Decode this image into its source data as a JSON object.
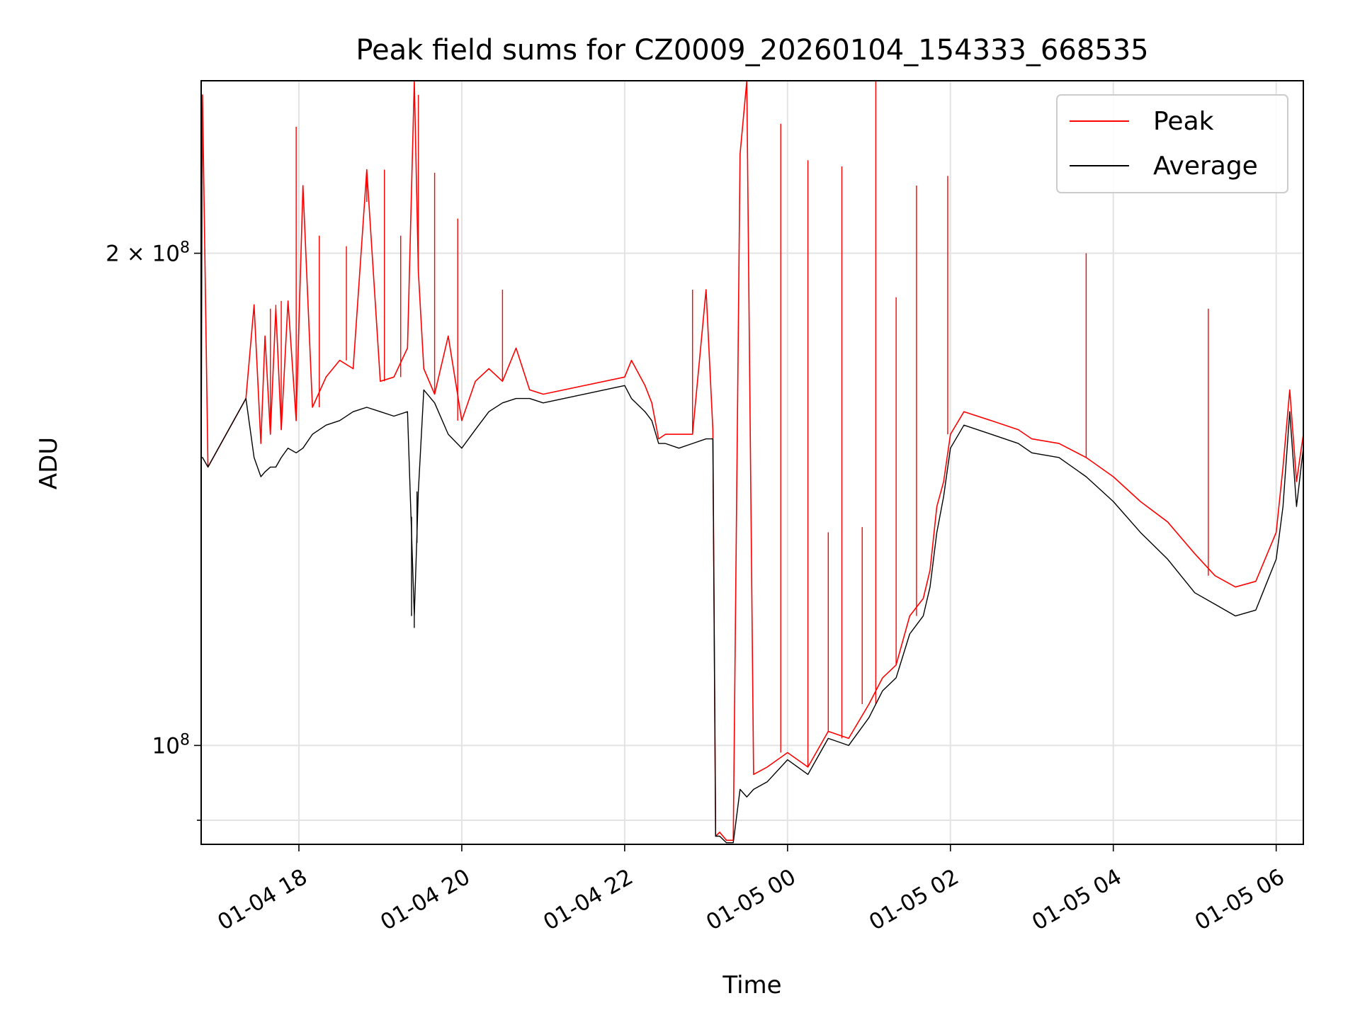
{
  "chart_data": {
    "type": "line",
    "title": "Peak field sums for CZ0009_20260104_154333_668535",
    "xlabel": "Time",
    "ylabel": "ADU",
    "yscale": "log",
    "xlim": [
      "2026-01-04 16:48",
      "2026-01-05 06:20"
    ],
    "ylim": [
      87000000,
      255000000
    ],
    "grid": true,
    "legend_position": "upper right",
    "x_ticks": [
      {
        "value": "2026-01-04 18:00",
        "label": "01-04 18"
      },
      {
        "value": "2026-01-04 20:00",
        "label": "01-04 20"
      },
      {
        "value": "2026-01-04 22:00",
        "label": "01-04 22"
      },
      {
        "value": "2026-01-05 00:00",
        "label": "01-05 00"
      },
      {
        "value": "2026-01-05 02:00",
        "label": "01-05 02"
      },
      {
        "value": "2026-01-05 04:00",
        "label": "01-05 04"
      },
      {
        "value": "2026-01-05 06:00",
        "label": "01-05 06"
      }
    ],
    "y_ticks": [
      {
        "value": 200000000,
        "label": "2×10⁸",
        "mantissa": "2 × 10",
        "exponent": "8"
      },
      {
        "value": 100000000,
        "label": "10⁸",
        "mantissa": "10",
        "exponent": "8"
      }
    ],
    "series": [
      {
        "name": "Peak",
        "color": "#ff0000",
        "x": [
          "2026-01-04 16:48",
          "2026-01-04 16:49",
          "2026-01-04 16:53",
          "2026-01-04 17:21",
          "2026-01-04 17:27",
          "2026-01-04 17:32",
          "2026-01-04 17:35",
          "2026-01-04 17:39",
          "2026-01-04 17:43",
          "2026-01-04 17:47",
          "2026-01-04 17:52",
          "2026-01-04 17:58",
          "2026-01-04 18:03",
          "2026-01-04 18:10",
          "2026-01-04 18:20",
          "2026-01-04 18:30",
          "2026-01-04 18:40",
          "2026-01-04 18:50",
          "2026-01-04 19:00",
          "2026-01-04 19:10",
          "2026-01-04 19:20",
          "2026-01-04 19:25",
          "2026-01-04 19:28",
          "2026-01-04 19:32",
          "2026-01-04 19:40",
          "2026-01-04 19:50",
          "2026-01-04 20:00",
          "2026-01-04 20:10",
          "2026-01-04 20:20",
          "2026-01-04 20:30",
          "2026-01-04 20:40",
          "2026-01-04 20:50",
          "2026-01-04 21:00",
          "2026-01-04 22:00",
          "2026-01-04 22:05",
          "2026-01-04 22:15",
          "2026-01-04 22:20",
          "2026-01-04 22:25",
          "2026-01-04 22:30",
          "2026-01-04 22:40",
          "2026-01-04 22:50",
          "2026-01-04 23:00",
          "2026-01-04 23:05",
          "2026-01-04 23:07",
          "2026-01-04 23:10",
          "2026-01-04 23:15",
          "2026-01-04 23:20",
          "2026-01-04 23:25",
          "2026-01-04 23:30",
          "2026-01-04 23:35",
          "2026-01-04 23:45",
          "2026-01-05 00:00",
          "2026-01-05 00:15",
          "2026-01-05 00:30",
          "2026-01-05 00:45",
          "2026-01-05 01:00",
          "2026-01-05 01:10",
          "2026-01-05 01:20",
          "2026-01-05 01:30",
          "2026-01-05 01:40",
          "2026-01-05 01:45",
          "2026-01-05 01:50",
          "2026-01-05 01:55",
          "2026-01-05 02:00",
          "2026-01-05 02:10",
          "2026-01-05 02:30",
          "2026-01-05 02:50",
          "2026-01-05 03:00",
          "2026-01-05 03:20",
          "2026-01-05 03:40",
          "2026-01-05 04:00",
          "2026-01-05 04:20",
          "2026-01-05 04:40",
          "2026-01-05 05:00",
          "2026-01-05 05:15",
          "2026-01-05 05:30",
          "2026-01-05 05:45",
          "2026-01-05 06:00",
          "2026-01-05 06:05",
          "2026-01-05 06:10",
          "2026-01-05 06:15",
          "2026-01-05 06:20"
        ],
        "y": [
          150000000,
          250000000,
          148000000,
          163000000,
          186000000,
          153000000,
          178000000,
          155000000,
          185000000,
          156000000,
          187000000,
          158000000,
          220000000,
          161000000,
          168000000,
          172000000,
          170000000,
          225000000,
          167000000,
          168000000,
          175000000,
          255000000,
          195000000,
          170000000,
          164000000,
          178000000,
          158000000,
          167000000,
          170000000,
          167000000,
          175000000,
          165000000,
          164000000,
          168000000,
          172000000,
          166000000,
          162000000,
          154000000,
          155000000,
          155000000,
          155000000,
          190000000,
          156000000,
          88000000,
          88500000,
          87500000,
          87500000,
          230000000,
          255000000,
          96000000,
          97000000,
          99000000,
          97000000,
          102000000,
          101000000,
          106000000,
          110000000,
          112000000,
          120000000,
          123000000,
          128000000,
          140000000,
          145000000,
          155000000,
          160000000,
          158000000,
          156000000,
          154000000,
          153000000,
          150000000,
          146000000,
          141000000,
          137000000,
          131000000,
          127000000,
          125000000,
          126000000,
          135000000,
          148000000,
          165000000,
          145000000,
          155000000
        ],
        "spikes": [
          {
            "x": "2026-01-04 17:35",
            "y": 178000000
          },
          {
            "x": "2026-01-04 17:39",
            "y": 185000000
          },
          {
            "x": "2026-01-04 17:43",
            "y": 186000000
          },
          {
            "x": "2026-01-04 17:47",
            "y": 187000000
          },
          {
            "x": "2026-01-04 17:58",
            "y": 239000000
          },
          {
            "x": "2026-01-04 18:15",
            "y": 205000000
          },
          {
            "x": "2026-01-04 18:35",
            "y": 202000000
          },
          {
            "x": "2026-01-04 18:50",
            "y": 215000000
          },
          {
            "x": "2026-01-04 19:03",
            "y": 225000000
          },
          {
            "x": "2026-01-04 19:15",
            "y": 205000000
          },
          {
            "x": "2026-01-04 19:25",
            "y": 255000000
          },
          {
            "x": "2026-01-04 19:28",
            "y": 250000000
          },
          {
            "x": "2026-01-04 19:40",
            "y": 224000000
          },
          {
            "x": "2026-01-04 19:57",
            "y": 210000000
          },
          {
            "x": "2026-01-04 20:30",
            "y": 190000000
          },
          {
            "x": "2026-01-04 22:00",
            "y": 168000000
          },
          {
            "x": "2026-01-04 22:50",
            "y": 190000000
          },
          {
            "x": "2026-01-04 23:30",
            "y": 255000000
          },
          {
            "x": "2026-01-04 23:32",
            "y": 255000000
          },
          {
            "x": "2026-01-04 23:55",
            "y": 240000000
          },
          {
            "x": "2026-01-05 00:15",
            "y": 228000000
          },
          {
            "x": "2026-01-05 00:30",
            "y": 135000000
          },
          {
            "x": "2026-01-05 00:40",
            "y": 226000000
          },
          {
            "x": "2026-01-05 00:55",
            "y": 136000000
          },
          {
            "x": "2026-01-05 01:05",
            "y": 255000000
          },
          {
            "x": "2026-01-05 01:20",
            "y": 188000000
          },
          {
            "x": "2026-01-05 01:35",
            "y": 220000000
          },
          {
            "x": "2026-01-05 01:58",
            "y": 223000000
          },
          {
            "x": "2026-01-05 03:40",
            "y": 200000000
          },
          {
            "x": "2026-01-05 05:10",
            "y": 185000000
          }
        ]
      },
      {
        "name": "Average",
        "color": "#000000",
        "x": [
          "2026-01-04 16:48",
          "2026-01-04 16:49",
          "2026-01-04 16:53",
          "2026-01-04 17:21",
          "2026-01-04 17:27",
          "2026-01-04 17:32",
          "2026-01-04 17:35",
          "2026-01-04 17:39",
          "2026-01-04 17:43",
          "2026-01-04 17:47",
          "2026-01-04 17:52",
          "2026-01-04 17:58",
          "2026-01-04 18:03",
          "2026-01-04 18:10",
          "2026-01-04 18:20",
          "2026-01-04 18:30",
          "2026-01-04 18:40",
          "2026-01-04 18:50",
          "2026-01-04 19:00",
          "2026-01-04 19:10",
          "2026-01-04 19:20",
          "2026-01-04 19:25",
          "2026-01-04 19:28",
          "2026-01-04 19:32",
          "2026-01-04 19:40",
          "2026-01-04 19:50",
          "2026-01-04 20:00",
          "2026-01-04 20:10",
          "2026-01-04 20:20",
          "2026-01-04 20:30",
          "2026-01-04 20:40",
          "2026-01-04 20:50",
          "2026-01-04 21:00",
          "2026-01-04 22:00",
          "2026-01-04 22:05",
          "2026-01-04 22:15",
          "2026-01-04 22:20",
          "2026-01-04 22:25",
          "2026-01-04 22:30",
          "2026-01-04 22:40",
          "2026-01-04 22:50",
          "2026-01-04 23:00",
          "2026-01-04 23:05",
          "2026-01-04 23:07",
          "2026-01-04 23:10",
          "2026-01-04 23:15",
          "2026-01-04 23:20",
          "2026-01-04 23:25",
          "2026-01-04 23:30",
          "2026-01-04 23:35",
          "2026-01-04 23:45",
          "2026-01-05 00:00",
          "2026-01-05 00:15",
          "2026-01-05 00:30",
          "2026-01-05 00:45",
          "2026-01-05 01:00",
          "2026-01-05 01:10",
          "2026-01-05 01:20",
          "2026-01-05 01:30",
          "2026-01-05 01:40",
          "2026-01-05 01:45",
          "2026-01-05 01:50",
          "2026-01-05 01:55",
          "2026-01-05 02:00",
          "2026-01-05 02:10",
          "2026-01-05 02:30",
          "2026-01-05 02:50",
          "2026-01-05 03:00",
          "2026-01-05 03:20",
          "2026-01-05 03:40",
          "2026-01-05 04:00",
          "2026-01-05 04:20",
          "2026-01-05 04:40",
          "2026-01-05 05:00",
          "2026-01-05 05:15",
          "2026-01-05 05:30",
          "2026-01-05 05:45",
          "2026-01-05 06:00",
          "2026-01-05 06:05",
          "2026-01-05 06:10",
          "2026-01-05 06:15",
          "2026-01-05 06:20"
        ],
        "y": [
          150000000,
          150000000,
          148000000,
          163000000,
          150000000,
          146000000,
          147000000,
          148000000,
          148000000,
          150000000,
          152000000,
          151000000,
          152000000,
          155000000,
          157000000,
          158000000,
          160000000,
          161000000,
          160000000,
          159000000,
          160000000,
          120000000,
          143000000,
          165000000,
          162000000,
          155000000,
          152000000,
          156000000,
          160000000,
          162000000,
          163000000,
          163000000,
          162000000,
          166000000,
          163000000,
          160000000,
          158000000,
          153000000,
          153000000,
          152000000,
          153000000,
          154000000,
          154000000,
          88000000,
          88000000,
          87200000,
          87200000,
          94000000,
          93000000,
          94000000,
          95000000,
          98000000,
          96000000,
          101000000,
          100000000,
          104000000,
          108000000,
          110000000,
          117000000,
          120000000,
          125000000,
          135000000,
          142000000,
          152000000,
          157000000,
          155000000,
          153000000,
          151000000,
          150000000,
          146000000,
          141000000,
          135000000,
          130000000,
          124000000,
          122000000,
          120000000,
          121000000,
          130000000,
          140000000,
          160000000,
          140000000,
          152000000
        ],
        "spikes": [
          {
            "x": "2026-01-04 19:25",
            "y": 118000000
          },
          {
            "x": "2026-01-04 19:27",
            "y": 133000000
          },
          {
            "x": "2026-01-04 19:23",
            "y": 138000000
          }
        ]
      }
    ]
  }
}
